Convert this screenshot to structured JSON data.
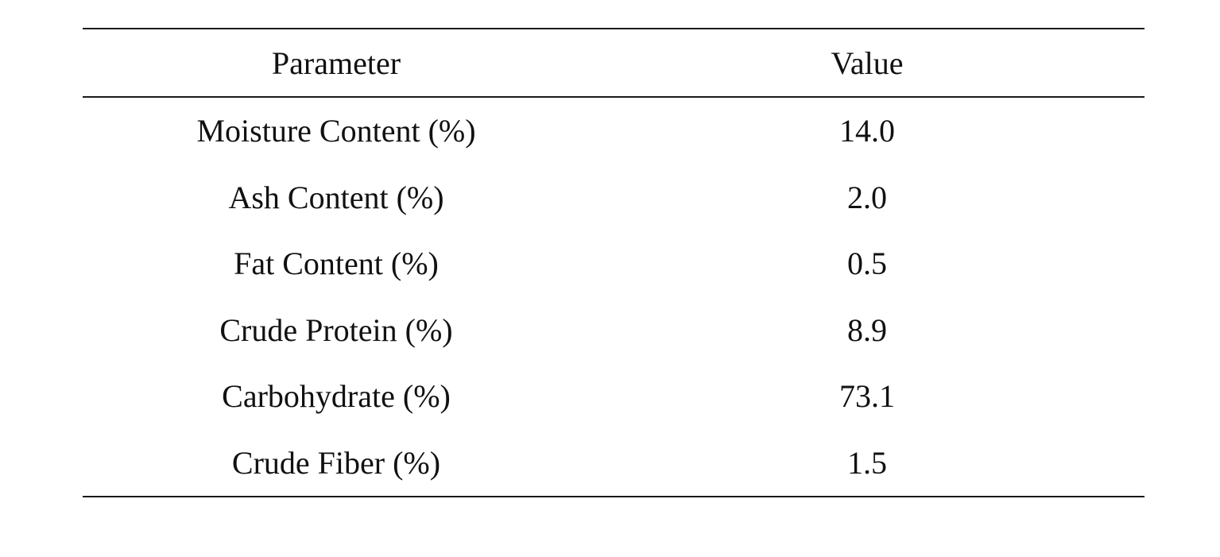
{
  "table": {
    "headers": {
      "parameter": "Parameter",
      "value": "Value"
    },
    "rows": [
      {
        "parameter": "Moisture Content (%)",
        "value": "14.0"
      },
      {
        "parameter": "Ash Content (%)",
        "value": "2.0"
      },
      {
        "parameter": "Fat Content (%)",
        "value": "0.5"
      },
      {
        "parameter": "Crude Protein (%)",
        "value": "8.9"
      },
      {
        "parameter": "Carbohydrate (%)",
        "value": "73.1"
      },
      {
        "parameter": "Crude Fiber (%)",
        "value": "1.5"
      }
    ]
  }
}
